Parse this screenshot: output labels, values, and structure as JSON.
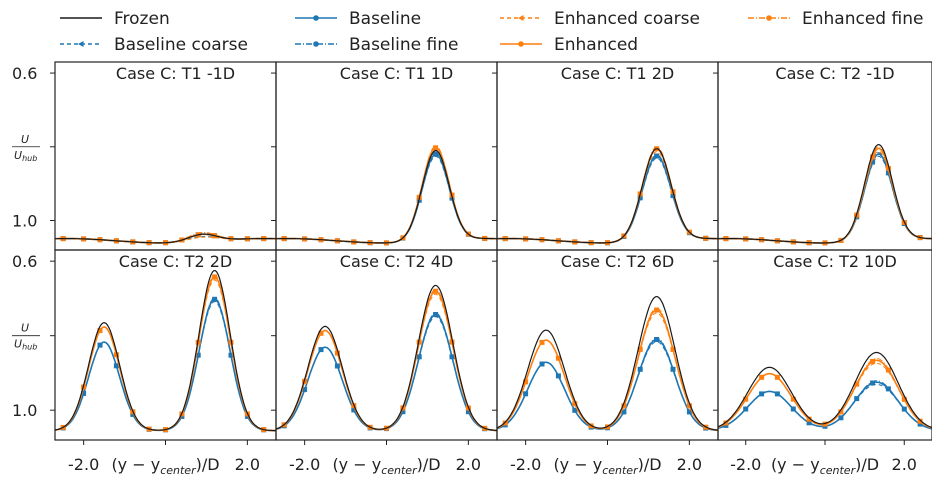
{
  "colors": {
    "frozen": "#1a1a1a",
    "baseline": "#1f77b4",
    "enhanced": "#ff7f0e"
  },
  "legend": [
    {
      "key": "frozen",
      "label": "Frozen",
      "color": "#1a1a1a",
      "dash": "",
      "marker": "none"
    },
    {
      "key": "baseline_coarse",
      "label": "Baseline coarse",
      "color": "#1f77b4",
      "dash": "4,3",
      "marker": "tri"
    },
    {
      "key": "baseline",
      "label": "Baseline",
      "color": "#1f77b4",
      "dash": "",
      "marker": "dot"
    },
    {
      "key": "baseline_fine",
      "label": "Baseline fine",
      "color": "#1f77b4",
      "dash": "6,2,1,2",
      "marker": "dot"
    },
    {
      "key": "enhanced_coarse",
      "label": "Enhanced coarse",
      "color": "#ff7f0e",
      "dash": "4,3",
      "marker": "tri"
    },
    {
      "key": "enhanced",
      "label": "Enhanced",
      "color": "#ff7f0e",
      "dash": "",
      "marker": "dot"
    },
    {
      "key": "enhanced_fine",
      "label": "Enhanced fine",
      "color": "#ff7f0e",
      "dash": "6,2,1,2",
      "marker": "dot"
    }
  ],
  "chart_data": {
    "type": "line",
    "xlabel_prefix": "(y − y",
    "xlabel_sub": "center",
    "xlabel_suffix": ")/D",
    "ylabel_num": "U",
    "ylabel_den": "U",
    "ylabel_den_sub": "hub",
    "xlim": [
      -2.7,
      2.7
    ],
    "ylim": [
      1.08,
      0.57
    ],
    "xticks": [
      "-2.0",
      "2.0"
    ],
    "yticks": [
      "0.6",
      "1.0"
    ],
    "marker_x": [
      -2.5,
      -2.0,
      -1.6,
      -1.2,
      -0.8,
      -0.4,
      0.0,
      0.4,
      0.8,
      1.2,
      1.6,
      2.0,
      2.4
    ],
    "panels": [
      {
        "title": "Case C: T1 -1D",
        "peaks": [
          [
            0.9,
            0.35,
            0.02
          ]
        ],
        "scale": {
          "baseline": 1.0,
          "enhanced": 1.0
        }
      },
      {
        "title": "Case C: T1  1D",
        "peaks": [
          [
            1.2,
            0.33,
            0.245
          ]
        ],
        "scale": {
          "baseline": 0.96,
          "enhanced": 1.03
        }
      },
      {
        "title": "Case C: T1  2D",
        "peaks": [
          [
            1.2,
            0.35,
            0.25
          ]
        ],
        "scale": {
          "baseline": 0.92,
          "enhanced": 1.0
        }
      },
      {
        "title": "Case C: T2 -1D",
        "peaks": [
          [
            1.35,
            0.35,
            0.26
          ]
        ],
        "scale": {
          "baseline": 0.9,
          "enhanced": 0.96
        }
      },
      {
        "title": "Case C: T2  2D",
        "peaks": [
          [
            -1.5,
            0.38,
            0.29
          ],
          [
            1.2,
            0.38,
            0.43
          ]
        ],
        "scale": {
          "baseline": 0.82,
          "enhanced": 0.96
        }
      },
      {
        "title": "Case C: T2  4D",
        "peaks": [
          [
            -1.5,
            0.42,
            0.28
          ],
          [
            1.2,
            0.42,
            0.39
          ]
        ],
        "scale": {
          "baseline": 0.8,
          "enhanced": 0.96
        }
      },
      {
        "title": "Case C: T2  6D",
        "peaks": [
          [
            -1.5,
            0.45,
            0.27
          ],
          [
            1.2,
            0.45,
            0.36
          ]
        ],
        "scale": {
          "baseline": 0.68,
          "enhanced": 0.9
        }
      },
      {
        "title": "Case C: T2 10D",
        "peaks": [
          [
            -1.4,
            0.55,
            0.17
          ],
          [
            1.3,
            0.55,
            0.21
          ]
        ],
        "scale": {
          "baseline": 0.62,
          "enhanced": 0.9
        }
      }
    ]
  }
}
